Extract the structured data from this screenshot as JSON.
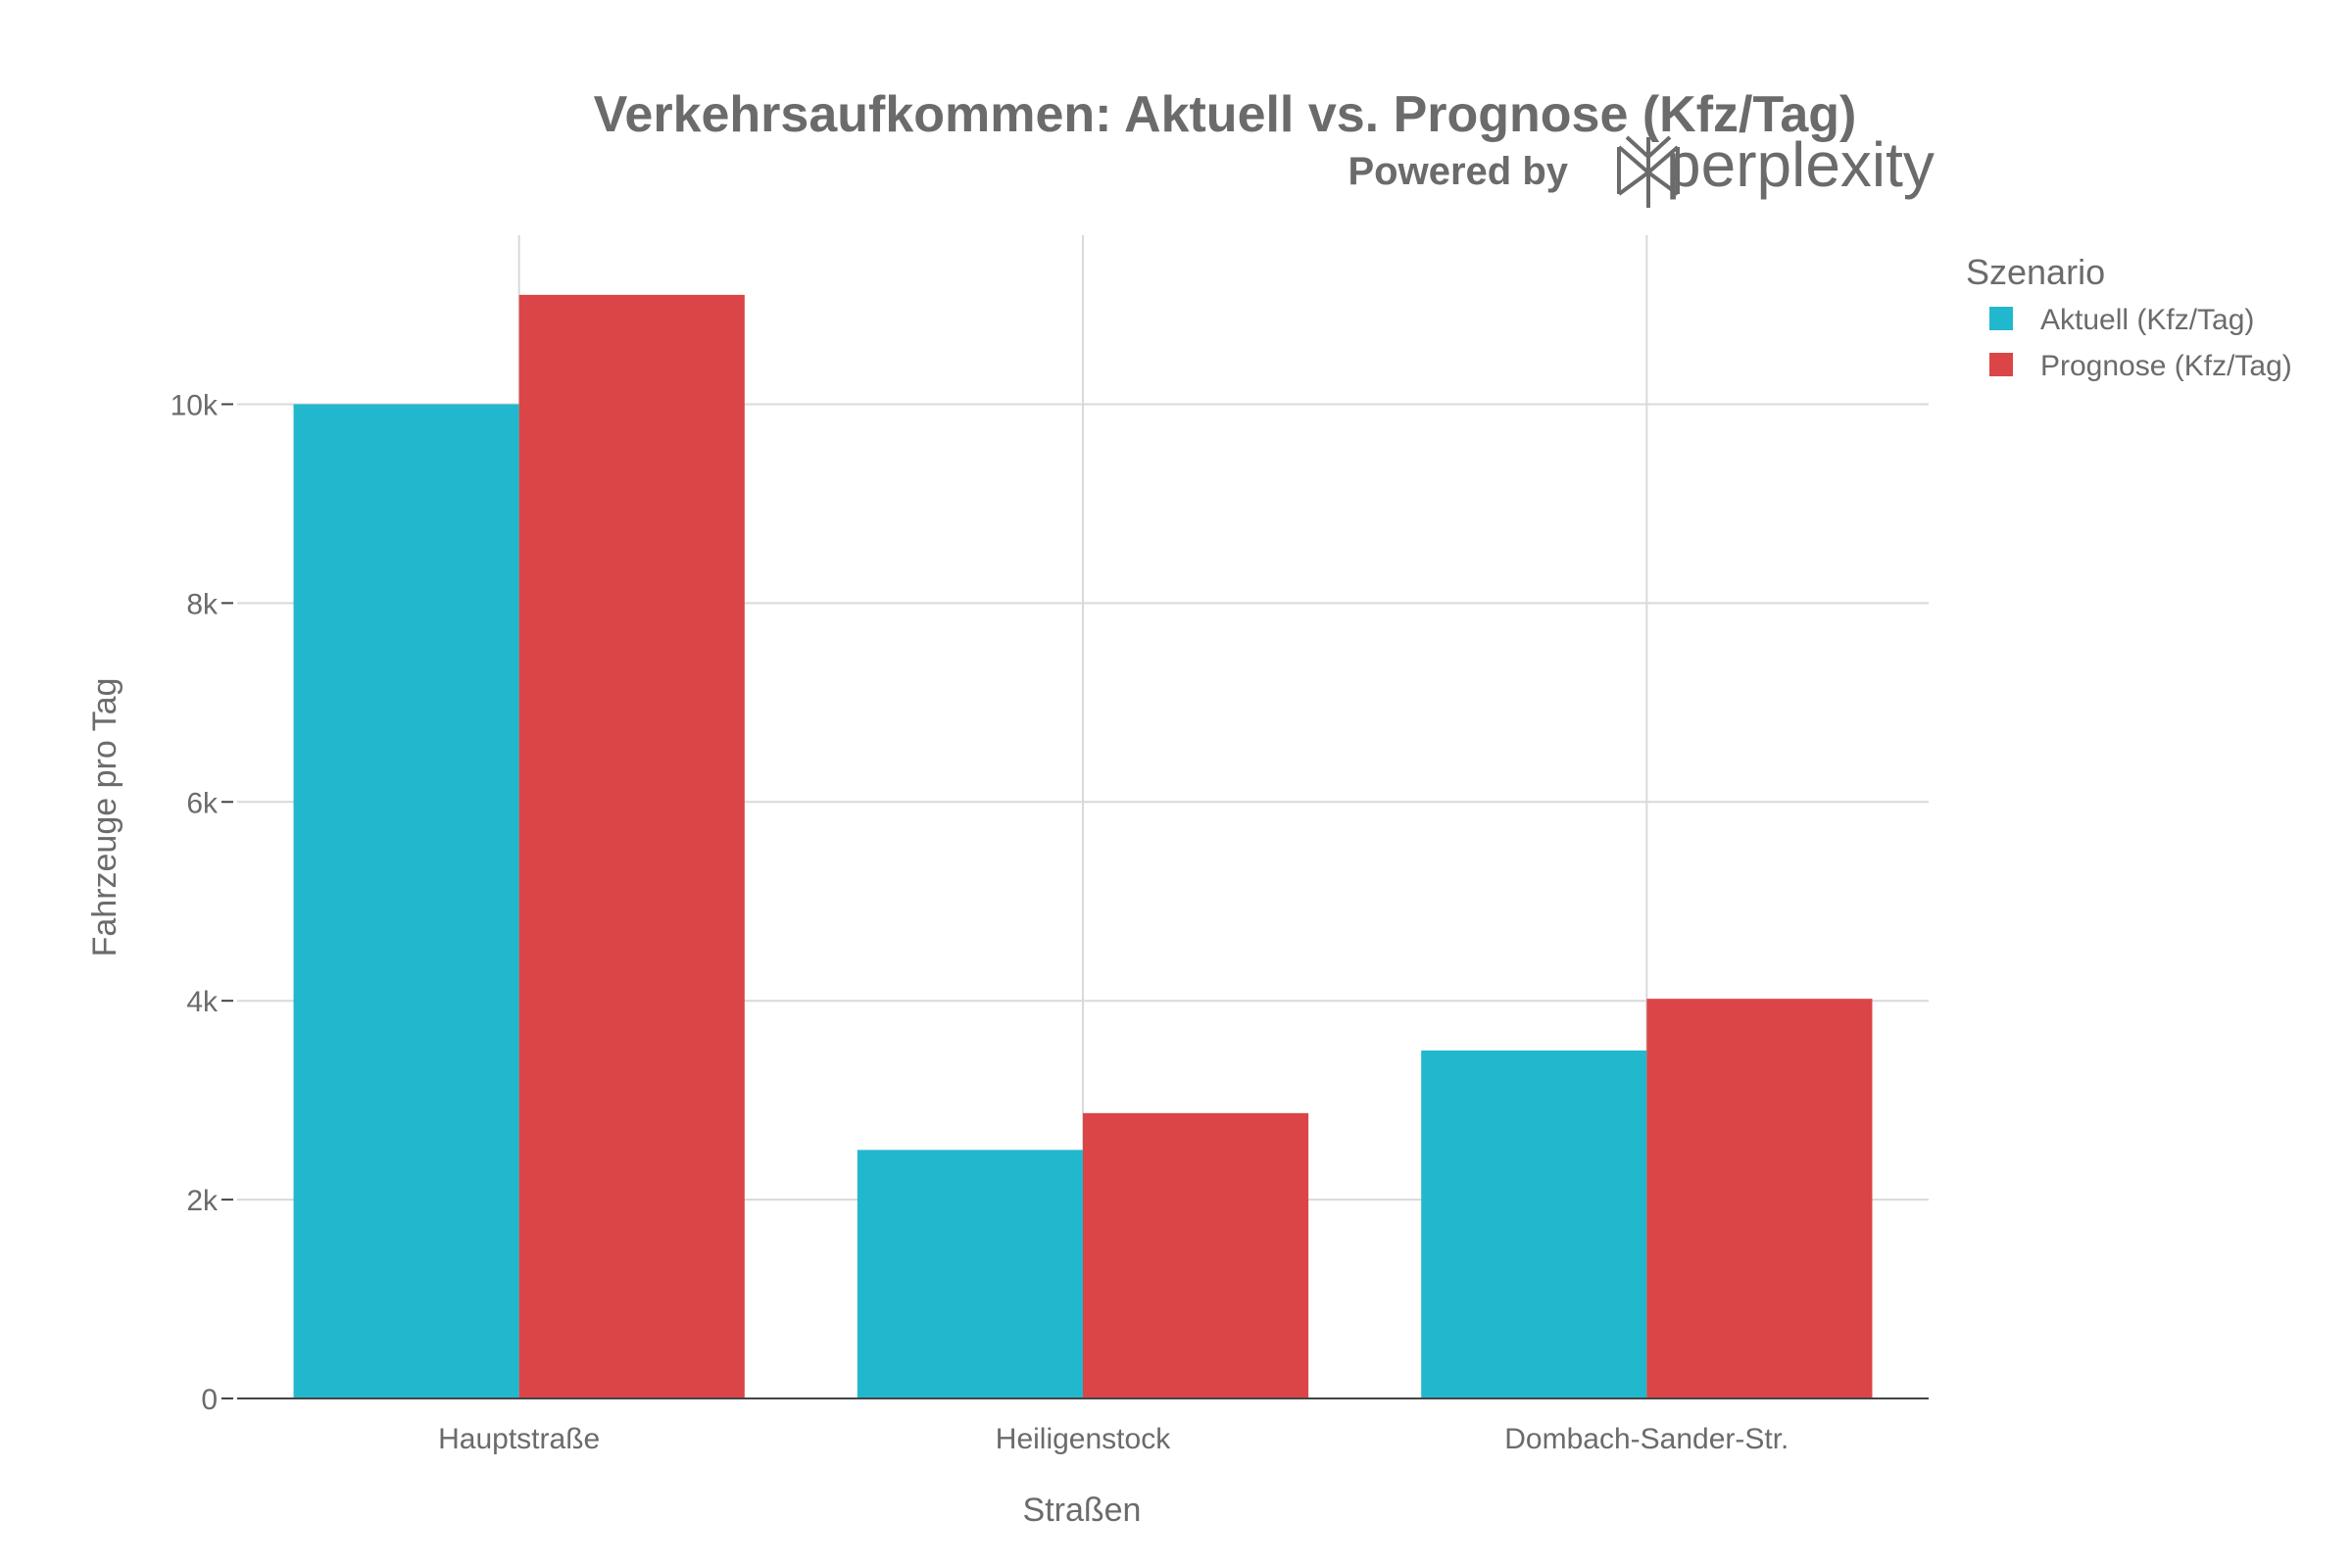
{
  "chart_data": {
    "type": "bar",
    "title": "Verkehrsaufkommen: Aktuell vs. Prognose (Kfz/Tag)",
    "watermark": "Powered by perplexity",
    "xlabel": "Straßen",
    "ylabel": "Fahrzeuge pro Tag",
    "categories": [
      "Hauptstraße",
      "Heiligenstock",
      "Dombach-Sander-Str."
    ],
    "series": [
      {
        "name": "Aktuell (Kfz/Tag)",
        "color": "#21b8cd",
        "values": [
          10000,
          2500,
          3500
        ]
      },
      {
        "name": "Prognose (Kfz/Tag)",
        "color": "#db4547",
        "values": [
          11100,
          2870,
          4020
        ]
      }
    ],
    "ylim": [
      0,
      11700
    ],
    "yticks": [
      0,
      2000,
      4000,
      6000,
      8000,
      10000
    ],
    "ytick_labels": [
      "0",
      "2k",
      "4k",
      "6k",
      "8k",
      "10k"
    ],
    "grid": true,
    "legend_title": "Szenario",
    "legend_position": "top-right"
  }
}
